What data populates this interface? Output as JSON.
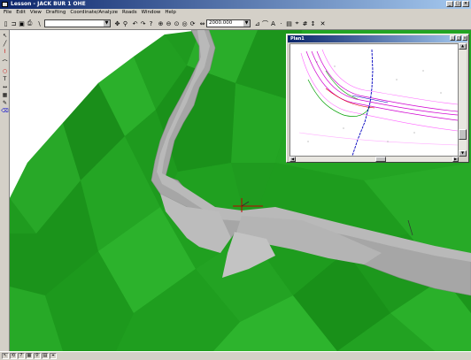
{
  "window": {
    "title": "Lesson - JACK BUR 1 OHE",
    "buttons": [
      "_",
      "□",
      "×"
    ]
  },
  "menu": [
    "File",
    "Edit",
    "View",
    "Drafting",
    "Coordinate/Analyze",
    "Roads",
    "Window",
    "Help"
  ],
  "toolbar": {
    "layer_combo": "",
    "scale_value": "2000.000"
  },
  "plan_window": {
    "title": "Plan1",
    "buttons": [
      "_",
      "□",
      "×"
    ]
  },
  "colors": {
    "terrain": "#1e9e1e",
    "road": "#a0a0a0",
    "sky": "#ffffff",
    "titlebar": "#0a246a"
  },
  "icons": {
    "toolbar": [
      "new-icon",
      "open-icon",
      "save-icon",
      "print-icon",
      "select-icon",
      "pan-icon",
      "zoom-icon",
      "undo-icon",
      "redo-icon",
      "help-icon",
      "zoom-in-icon",
      "zoom-out-icon",
      "zoom-extents-icon",
      "zoom-window-icon",
      "redraw-icon",
      "scale-icon",
      "line-icon",
      "arc-icon",
      "text-icon",
      "point-icon",
      "layer-icon",
      "snap-icon",
      "grid-icon",
      "measure-icon",
      "delete-icon"
    ],
    "left": [
      "pointer-icon",
      "line-icon",
      "polyline-icon",
      "arc-icon",
      "circle-icon",
      "text-icon",
      "dimension-icon",
      "hatch-icon",
      "pencil-icon",
      "erase-icon"
    ]
  }
}
